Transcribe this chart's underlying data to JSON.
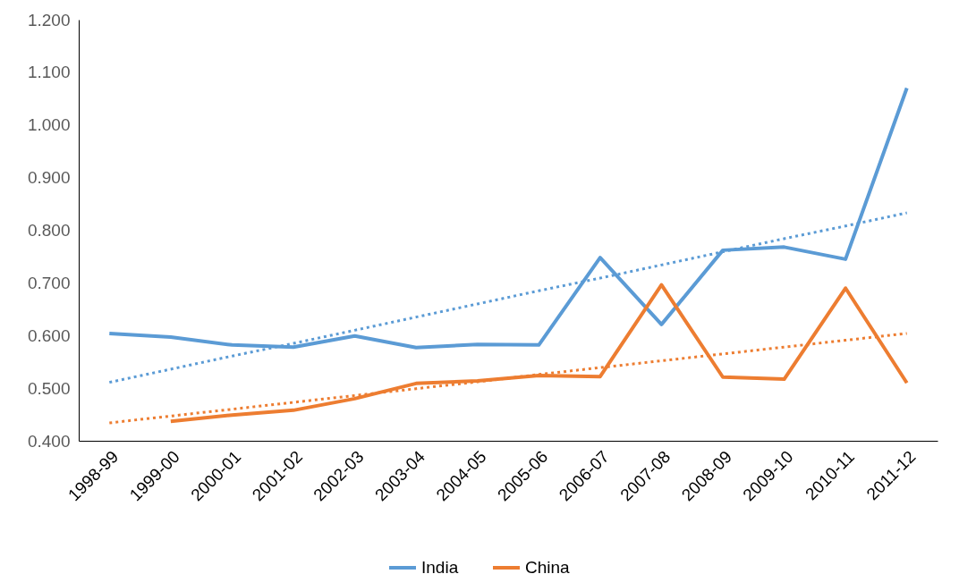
{
  "chart_data": {
    "type": "line",
    "categories": [
      "1998-99",
      "1999-00",
      "2000-01",
      "2001-02",
      "2002-03",
      "2003-04",
      "2004-05",
      "2005-06",
      "2006-07",
      "2007-08",
      "2008-09",
      "2009-10",
      "2010-11",
      "2011-12"
    ],
    "series": [
      {
        "name": "India",
        "color": "#5b9bd5",
        "values": [
          0.604,
          0.597,
          0.582,
          0.578,
          0.599,
          0.577,
          0.583,
          0.582,
          0.748,
          0.621,
          0.762,
          0.768,
          0.745,
          1.07
        ]
      },
      {
        "name": "China",
        "color": "#ed7d31",
        "values": [
          null,
          0.437,
          0.449,
          0.458,
          0.48,
          0.509,
          0.514,
          0.524,
          0.522,
          0.696,
          0.521,
          0.517,
          0.69,
          0.51
        ]
      },
      {
        "type": "line",
        "line_style": "dotted",
        "color": "#5b9bd5",
        "values": [
          0.511,
          0.536,
          0.561,
          0.585,
          0.61,
          0.635,
          0.66,
          0.685,
          0.709,
          0.734,
          0.759,
          0.784,
          0.808,
          0.833
        ]
      },
      {
        "type": "line",
        "line_style": "dotted",
        "color": "#ed7d31",
        "values": [
          0.434,
          0.447,
          0.46,
          0.473,
          0.486,
          0.499,
          0.512,
          0.526,
          0.539,
          0.552,
          0.565,
          0.578,
          0.591,
          0.604
        ]
      }
    ],
    "ylim": [
      0.4,
      1.2
    ],
    "yticks": [
      {
        "value": 0.4,
        "label": "0.400"
      },
      {
        "value": 0.5,
        "label": "0.500"
      },
      {
        "value": 0.6,
        "label": "0.600"
      },
      {
        "value": 0.7,
        "label": "0.700"
      },
      {
        "value": 0.8,
        "label": "0.800"
      },
      {
        "value": 0.9,
        "label": "0.900"
      },
      {
        "value": 1.0,
        "label": "1.000"
      },
      {
        "value": 1.1,
        "label": "1.100"
      },
      {
        "value": 1.2,
        "label": "1.200"
      }
    ],
    "grid": false,
    "legend": "bottom",
    "marker": "none",
    "line_style": "solid"
  }
}
